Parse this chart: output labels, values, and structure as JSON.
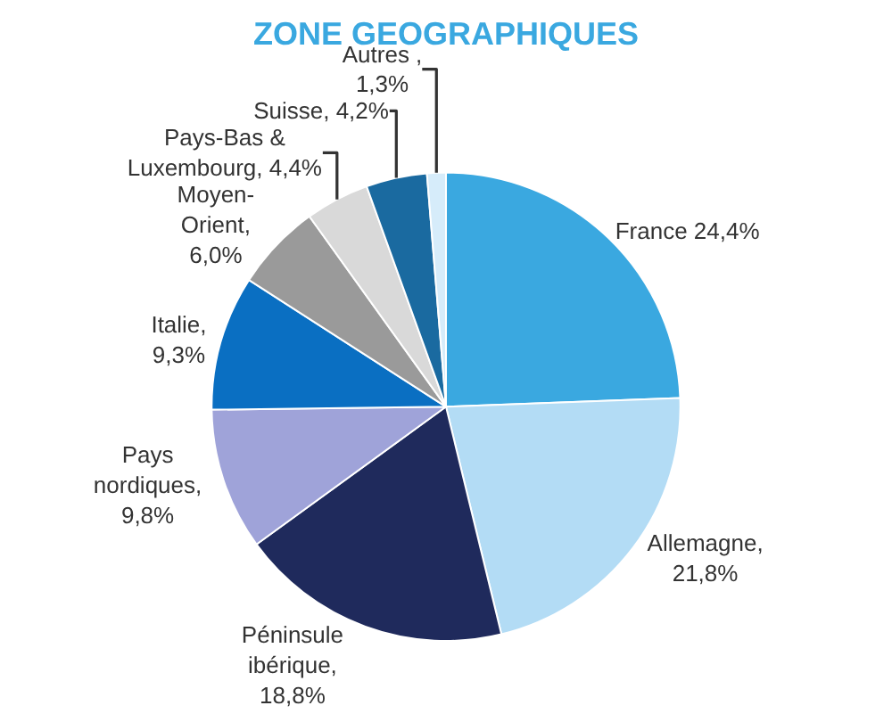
{
  "chart_data": {
    "type": "pie",
    "title": "ZONE GEOGRAPHIQUES",
    "categories": [
      "France",
      "Allemagne",
      "Péninsule\nibérique",
      "Pays\nnordiques",
      "Italie",
      "Moyen-\nOrient",
      "Pays-Bas &\nLuxembourg",
      "Suisse",
      "Autres"
    ],
    "values": [
      24.4,
      21.8,
      18.8,
      9.8,
      9.3,
      6.0,
      4.4,
      4.2,
      1.3
    ],
    "colors": [
      "#3aa8e0",
      "#b3dcf5",
      "#1f2a5c",
      "#9fa3d9",
      "#0a6fc2",
      "#9a9a9a",
      "#d9d9d9",
      "#1a6aa0",
      "#d6ecfa"
    ],
    "value_labels": [
      " 24,4%",
      ",\n21,8%",
      ",\n18,8%",
      ",\n9,8%",
      ",\n9,3%",
      ",\n6,0%",
      ", 4,4%",
      ", 4,2%",
      " ,\n1,3%"
    ],
    "legend": false
  }
}
